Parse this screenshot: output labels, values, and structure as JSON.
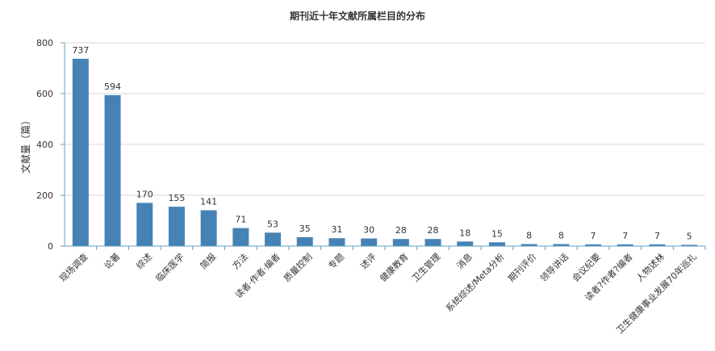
{
  "chart_data": {
    "type": "bar",
    "title": "期刊近十年文献所属栏目的分布",
    "ylabel": "文献量（篇）",
    "xlabel": "",
    "ylim": [
      0,
      800
    ],
    "yticks": [
      0,
      200,
      400,
      600,
      800
    ],
    "grid": true,
    "bar_color": "#4682b4",
    "categories": [
      "现场调查",
      "论著",
      "综述",
      "临床医学",
      "简报",
      "方法",
      "读者·作者·编者",
      "质量控制",
      "专题",
      "述评",
      "健康教育",
      "卫生管理",
      "消息",
      "系统综述/Meta分析",
      "期刊评价",
      "领导讲话",
      "会议纪要",
      "读者?作者?编者",
      "人物述林",
      "卫生健康事业发展70年巡礼"
    ],
    "values": [
      737,
      594,
      170,
      155,
      141,
      71,
      53,
      35,
      31,
      30,
      28,
      28,
      18,
      15,
      8,
      8,
      7,
      7,
      7,
      5
    ]
  }
}
